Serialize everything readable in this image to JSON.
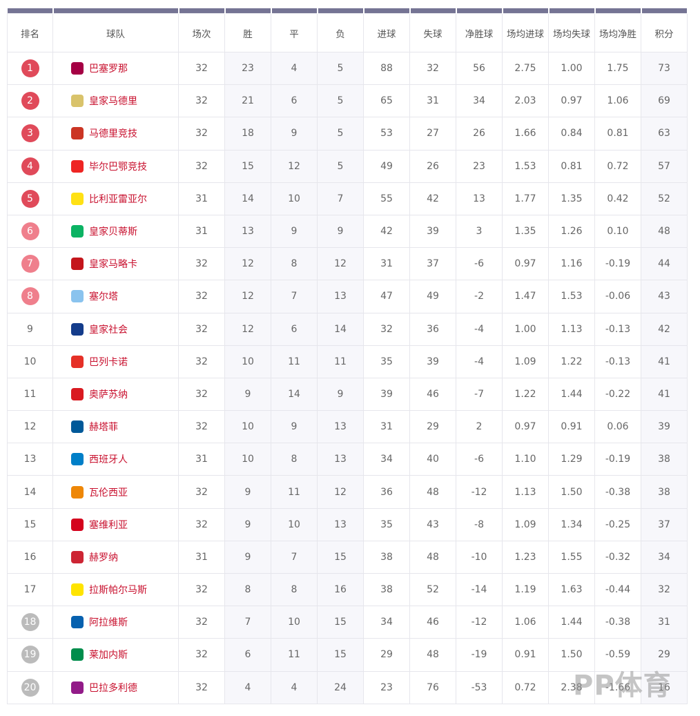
{
  "headers": [
    "排名",
    "球队",
    "场次",
    "胜",
    "平",
    "负",
    "进球",
    "失球",
    "净胜球",
    "场均进球",
    "场均失球",
    "场均净胜",
    "积分"
  ],
  "colors": {
    "header_bar": "#757494",
    "top5": "#e04a5a",
    "europe": "#ef7f8c",
    "relegation": "#bbbbbb",
    "team_text": "#c8102e"
  },
  "rows": [
    [
      1,
      "巴塞罗那",
      32,
      23,
      4,
      5,
      88,
      32,
      56,
      "2.75",
      "1.00",
      "1.75",
      73
    ],
    [
      2,
      "皇家马德里",
      32,
      21,
      6,
      5,
      65,
      31,
      34,
      "2.03",
      "0.97",
      "1.06",
      69
    ],
    [
      3,
      "马德里竞技",
      32,
      18,
      9,
      5,
      53,
      27,
      26,
      "1.66",
      "0.84",
      "0.81",
      63
    ],
    [
      4,
      "毕尔巴鄂竞技",
      32,
      15,
      12,
      5,
      49,
      26,
      23,
      "1.53",
      "0.81",
      "0.72",
      57
    ],
    [
      5,
      "比利亚雷亚尔",
      31,
      14,
      10,
      7,
      55,
      42,
      13,
      "1.77",
      "1.35",
      "0.42",
      52
    ],
    [
      6,
      "皇家贝蒂斯",
      31,
      13,
      9,
      9,
      42,
      39,
      3,
      "1.35",
      "1.26",
      "0.10",
      48
    ],
    [
      7,
      "皇家马略卡",
      32,
      12,
      8,
      12,
      31,
      37,
      -6,
      "0.97",
      "1.16",
      "-0.19",
      44
    ],
    [
      8,
      "塞尔塔",
      32,
      12,
      7,
      13,
      47,
      49,
      -2,
      "1.47",
      "1.53",
      "-0.06",
      43
    ],
    [
      9,
      "皇家社会",
      32,
      12,
      6,
      14,
      32,
      36,
      -4,
      "1.00",
      "1.13",
      "-0.13",
      42
    ],
    [
      10,
      "巴列卡诺",
      32,
      10,
      11,
      11,
      35,
      39,
      -4,
      "1.09",
      "1.22",
      "-0.13",
      41
    ],
    [
      11,
      "奥萨苏纳",
      32,
      9,
      14,
      9,
      39,
      46,
      -7,
      "1.22",
      "1.44",
      "-0.22",
      41
    ],
    [
      12,
      "赫塔菲",
      32,
      10,
      9,
      13,
      31,
      29,
      2,
      "0.97",
      "0.91",
      "0.06",
      39
    ],
    [
      13,
      "西班牙人",
      31,
      10,
      8,
      13,
      34,
      40,
      -6,
      "1.10",
      "1.29",
      "-0.19",
      38
    ],
    [
      14,
      "瓦伦西亚",
      32,
      9,
      11,
      12,
      36,
      48,
      -12,
      "1.13",
      "1.50",
      "-0.38",
      38
    ],
    [
      15,
      "塞维利亚",
      32,
      9,
      10,
      13,
      35,
      43,
      -8,
      "1.09",
      "1.34",
      "-0.25",
      37
    ],
    [
      16,
      "赫罗纳",
      31,
      9,
      7,
      15,
      38,
      48,
      -10,
      "1.23",
      "1.55",
      "-0.32",
      34
    ],
    [
      17,
      "拉斯帕尔马斯",
      32,
      8,
      8,
      16,
      38,
      52,
      -14,
      "1.19",
      "1.63",
      "-0.44",
      32
    ],
    [
      18,
      "阿拉维斯",
      32,
      7,
      10,
      15,
      34,
      46,
      -12,
      "1.06",
      "1.44",
      "-0.38",
      31
    ],
    [
      19,
      "莱加内斯",
      32,
      6,
      11,
      15,
      29,
      48,
      -19,
      "0.91",
      "1.50",
      "-0.59",
      29
    ],
    [
      20,
      "巴拉多利德",
      32,
      4,
      4,
      24,
      23,
      76,
      -53,
      "0.72",
      "2.38",
      "-1.66",
      16
    ]
  ],
  "logo_colors": [
    "#a50044",
    "#d9c36b",
    "#cb3524",
    "#ee2523",
    "#ffe114",
    "#0bb363",
    "#c4161c",
    "#8ac3ee",
    "#143c8b",
    "#e53027",
    "#d91a21",
    "#005999",
    "#007fc8",
    "#ee8707",
    "#d4021d",
    "#cd2534",
    "#ffe400",
    "#0761af",
    "#008d4c",
    "#921b88"
  ],
  "watermark": "PP体育"
}
